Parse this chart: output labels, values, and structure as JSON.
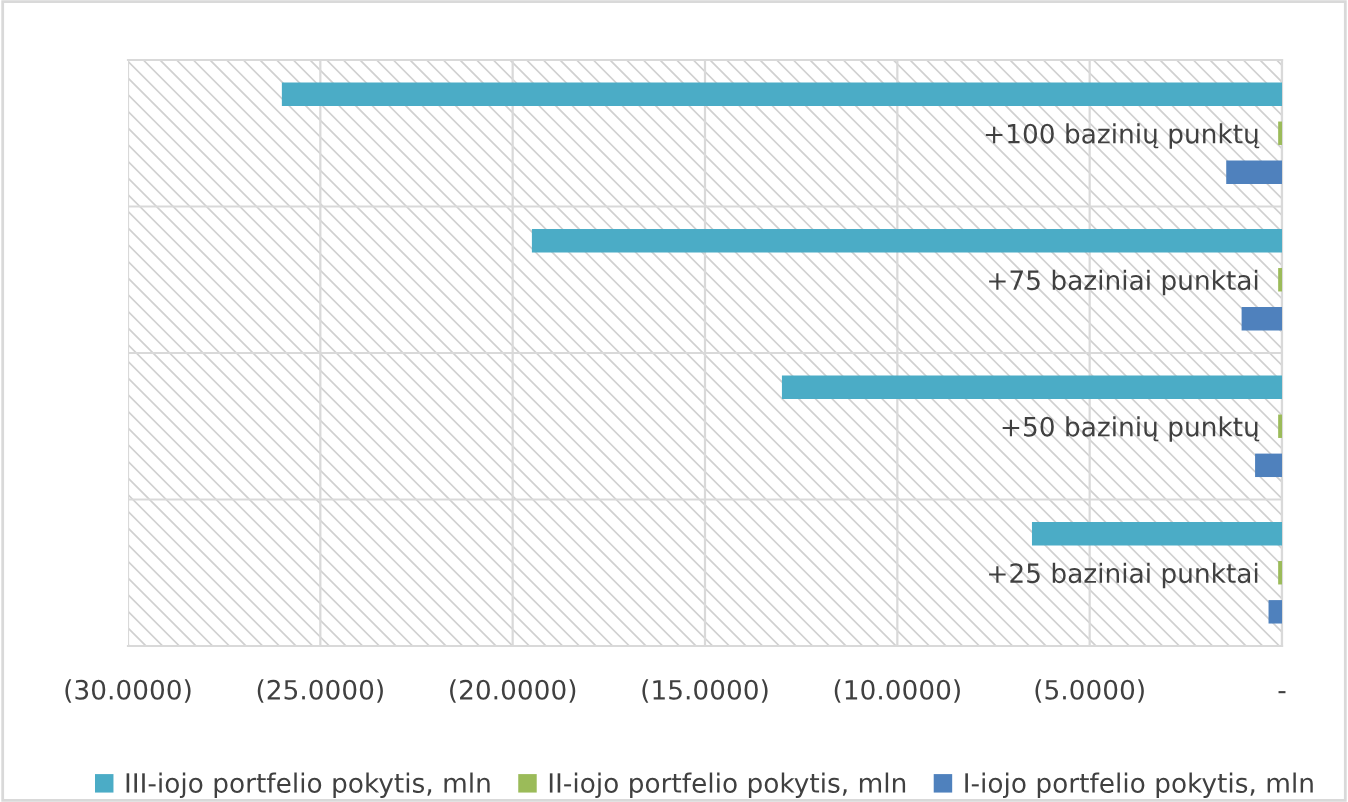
{
  "chart_data": {
    "type": "bar",
    "orientation": "horizontal",
    "categories": [
      "+100 bazinių punktų",
      "+75 baziniai punktai",
      "+50 bazinių punktų",
      "+25 baziniai punktai"
    ],
    "series": [
      {
        "name": "III-iojo portfelio pokytis, mln",
        "color": "#4bacc6",
        "values": [
          -26.0,
          -19.5,
          -13.0,
          -6.5
        ]
      },
      {
        "name": "II-iojo portfelio pokytis, mln",
        "color": "#9bbb59",
        "values": [
          -0.1,
          -0.1,
          -0.1,
          -0.1
        ]
      },
      {
        "name": "I-iojo portfelio pokytis, mln",
        "color": "#4f81bd",
        "values": [
          -1.45,
          -1.05,
          -0.7,
          -0.35
        ]
      }
    ],
    "xlim": [
      -30,
      0
    ],
    "xticks": [
      {
        "value": -30,
        "label": "(30.0000)"
      },
      {
        "value": -25,
        "label": "(25.0000)"
      },
      {
        "value": -20,
        "label": "(20.0000)"
      },
      {
        "value": -15,
        "label": "(15.0000)"
      },
      {
        "value": -10,
        "label": "(10.0000)"
      },
      {
        "value": -5,
        "label": "(5.0000)"
      },
      {
        "value": 0,
        "label": "-"
      }
    ],
    "grid": true,
    "legend": "bottom"
  }
}
